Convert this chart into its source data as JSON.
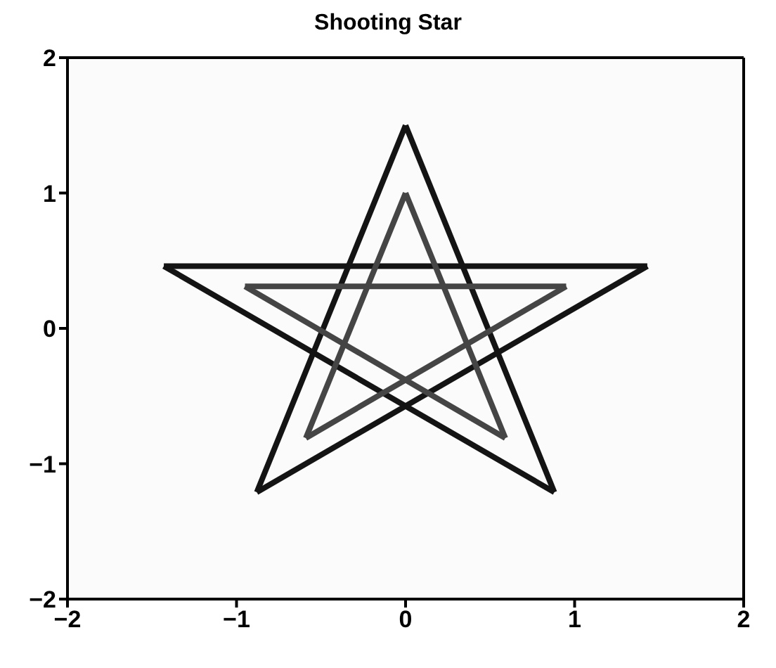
{
  "chart_data": {
    "type": "line",
    "title": "Shooting Star",
    "series": [
      {
        "color": "#141414",
        "x": [
          0,
          0.88
        ],
        "values": [
          1.5,
          -1.21
        ]
      },
      {
        "color": "#141414",
        "x": [
          -1.43,
          0.88
        ],
        "values": [
          0.46,
          -1.21
        ]
      },
      {
        "color": "#141414",
        "x": [
          -1.43,
          1.43
        ],
        "values": [
          0.46,
          0.46
        ]
      },
      {
        "color": "#141414",
        "x": [
          -0.88,
          1.43
        ],
        "values": [
          -1.21,
          0.46
        ]
      },
      {
        "color": "#141414",
        "x": [
          -0.88,
          0
        ],
        "values": [
          -1.21,
          1.5
        ]
      },
      {
        "color": "#454545",
        "x": [
          0,
          0.59
        ],
        "values": [
          1,
          -0.81
        ]
      },
      {
        "color": "#454545",
        "x": [
          -0.95,
          0.59
        ],
        "values": [
          0.31,
          -0.81
        ]
      },
      {
        "color": "#454545",
        "x": [
          -0.95,
          0.95
        ],
        "values": [
          0.31,
          0.31
        ]
      },
      {
        "color": "#454545",
        "x": [
          -0.59,
          0.95
        ],
        "values": [
          -0.81,
          0.31
        ]
      },
      {
        "color": "#454545",
        "x": [
          -0.59,
          0
        ],
        "values": [
          -0.81,
          1
        ]
      }
    ],
    "xlim": [
      -2,
      2
    ],
    "ylim": [
      -2,
      2
    ],
    "xticks": [
      {
        "value": -2,
        "label": "−2"
      },
      {
        "value": -1,
        "label": "−1"
      },
      0,
      1,
      2
    ],
    "yticks": [
      {
        "value": -2,
        "label": "−2"
      },
      {
        "value": -1,
        "label": "−1"
      },
      0,
      1,
      2
    ],
    "grid": false,
    "marker": "none",
    "line_style": "solid"
  }
}
